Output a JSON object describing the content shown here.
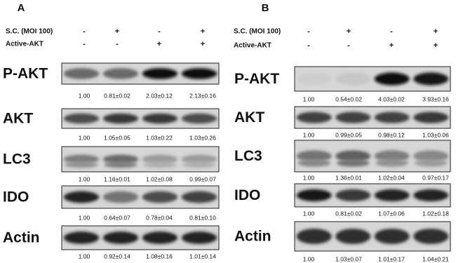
{
  "panels": [
    {
      "label": "A",
      "conditions": [
        {
          "name": "S.C. (MOI 100)",
          "signs": [
            "-",
            "+",
            "-",
            "+"
          ]
        },
        {
          "name": "Active-AKT",
          "signs": [
            "-",
            "-",
            "+",
            "+"
          ]
        }
      ],
      "blots": [
        {
          "name": "P-AKT",
          "values": [
            "1.00",
            "0.81±0.02",
            "2.03±0.12",
            "2.13±0.16"
          ]
        },
        {
          "name": "AKT",
          "values": [
            "1.00",
            "1.05±0.05",
            "1.03±0.22",
            "1.03±0.26"
          ]
        },
        {
          "name": "LC3",
          "values": [
            "1.00",
            "1.16±0.01",
            "1.02±0.08",
            "0.99±0.07"
          ]
        },
        {
          "name": "IDO",
          "values": [
            "1.00",
            "0.64±0.07",
            "0.78±0.04",
            "0.81±0.10"
          ]
        },
        {
          "name": "Actin",
          "values": [
            "1.00",
            "0.92±0.14",
            "1.08±0.16",
            "1.01±0.14"
          ]
        }
      ]
    },
    {
      "label": "B",
      "conditions": [
        {
          "name": "S.C. (MOI 100)",
          "signs": [
            "-",
            "+",
            "-",
            "+"
          ]
        },
        {
          "name": "Active-AKT",
          "signs": [
            "-",
            "-",
            "+",
            "+"
          ]
        }
      ],
      "blots": [
        {
          "name": "P-AKT",
          "values": [
            "1.00",
            "0.54±0.02",
            "4.03±0.02",
            "3.93±0.16"
          ]
        },
        {
          "name": "AKT",
          "values": [
            "1.00",
            "0.99±0.05",
            "0.98±0.12",
            "1.03±0.06"
          ]
        },
        {
          "name": "LC3",
          "values": [
            "1.00",
            "1.36±0.01",
            "1.02±0.04",
            "0.97±0.17"
          ]
        },
        {
          "name": "IDO",
          "values": [
            "1.00",
            "0.81±0.02",
            "1.07±0.06",
            "1.02±0.18"
          ]
        },
        {
          "name": "Actin",
          "values": [
            "1.00",
            "1.03±0.07",
            "1.01±0.17",
            "1.04±0.21"
          ]
        }
      ]
    }
  ]
}
